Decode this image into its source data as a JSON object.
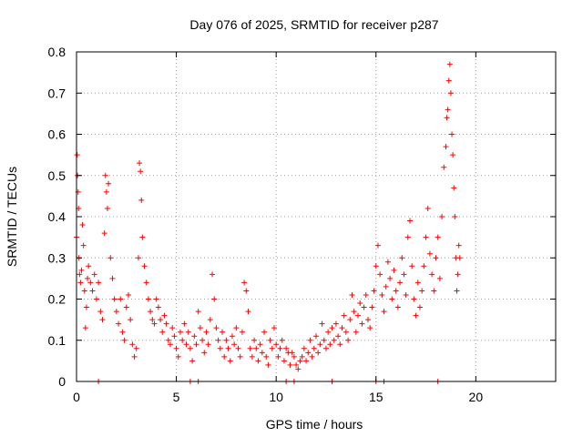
{
  "chart_data": {
    "type": "scatter",
    "title": "Day 076 of 2025, SRMTID for receiver p287",
    "xlabel": "GPS time / hours",
    "ylabel": "SRMTID / TECUs",
    "xlim": [
      0,
      24
    ],
    "ylim": [
      0,
      0.8
    ],
    "xticks": [
      0,
      5,
      10,
      15,
      20
    ],
    "xtick_labels": [
      "0",
      "5",
      "10",
      "15",
      "20"
    ],
    "yticks": [
      0,
      0.1,
      0.2,
      0.3,
      0.4,
      0.5,
      0.6,
      0.7,
      0.8
    ],
    "ytick_labels": [
      "0",
      "0.1",
      "0.2",
      "0.3",
      "0.4",
      "0.5",
      "0.6",
      "0.7",
      "0.8"
    ],
    "grid": true,
    "marker": "+",
    "color": "#ff0000",
    "series": [
      {
        "name": "SRMTID",
        "points": [
          [
            0.0,
            0.35
          ],
          [
            0.03,
            0.55
          ],
          [
            0.05,
            0.5
          ],
          [
            0.08,
            0.46
          ],
          [
            0.1,
            0.42
          ],
          [
            0.12,
            0.3
          ],
          [
            0.15,
            0.26
          ],
          [
            0.2,
            0.24
          ],
          [
            0.25,
            0.27
          ],
          [
            0.3,
            0.38
          ],
          [
            0.35,
            0.33
          ],
          [
            0.4,
            0.22
          ],
          [
            0.45,
            0.13
          ],
          [
            0.5,
            0.18
          ],
          [
            0.55,
            0.25
          ],
          [
            0.6,
            0.28
          ],
          [
            0.7,
            0.24
          ],
          [
            0.8,
            0.22
          ],
          [
            0.9,
            0.26
          ],
          [
            1.0,
            0.2
          ],
          [
            1.1,
            0.24
          ],
          [
            1.2,
            0.17
          ],
          [
            1.3,
            0.15
          ],
          [
            1.4,
            0.36
          ],
          [
            1.45,
            0.5
          ],
          [
            1.5,
            0.46
          ],
          [
            1.55,
            0.42
          ],
          [
            1.6,
            0.48
          ],
          [
            1.7,
            0.3
          ],
          [
            1.8,
            0.25
          ],
          [
            1.9,
            0.2
          ],
          [
            2.0,
            0.17
          ],
          [
            2.1,
            0.14
          ],
          [
            2.2,
            0.2
          ],
          [
            2.3,
            0.12
          ],
          [
            2.4,
            0.1
          ],
          [
            2.5,
            0.18
          ],
          [
            2.6,
            0.21
          ],
          [
            2.7,
            0.15
          ],
          [
            2.8,
            0.09
          ],
          [
            2.9,
            0.06
          ],
          [
            3.0,
            0.08
          ],
          [
            3.1,
            0.3
          ],
          [
            3.15,
            0.53
          ],
          [
            3.2,
            0.51
          ],
          [
            3.25,
            0.44
          ],
          [
            3.3,
            0.35
          ],
          [
            3.4,
            0.28
          ],
          [
            3.5,
            0.24
          ],
          [
            3.6,
            0.2
          ],
          [
            3.7,
            0.17
          ],
          [
            3.8,
            0.15
          ],
          [
            3.9,
            0.14
          ],
          [
            4.0,
            0.2
          ],
          [
            4.1,
            0.18
          ],
          [
            4.2,
            0.15
          ],
          [
            4.3,
            0.12
          ],
          [
            4.4,
            0.16
          ],
          [
            4.5,
            0.14
          ],
          [
            4.6,
            0.1
          ],
          [
            4.7,
            0.09
          ],
          [
            4.8,
            0.13
          ],
          [
            4.9,
            0.11
          ],
          [
            5.0,
            0.08
          ],
          [
            5.1,
            0.06
          ],
          [
            5.2,
            0.12
          ],
          [
            5.3,
            0.1
          ],
          [
            5.4,
            0.14
          ],
          [
            5.5,
            0.09
          ],
          [
            5.6,
            0.12
          ],
          [
            5.7,
            0.08
          ],
          [
            5.8,
            0.05
          ],
          [
            5.9,
            0.11
          ],
          [
            6.0,
            0.09
          ],
          [
            6.1,
            0.17
          ],
          [
            6.2,
            0.13
          ],
          [
            6.3,
            0.1
          ],
          [
            6.4,
            0.07
          ],
          [
            6.5,
            0.12
          ],
          [
            6.6,
            0.09
          ],
          [
            6.7,
            0.15
          ],
          [
            6.8,
            0.26
          ],
          [
            6.9,
            0.2
          ],
          [
            7.0,
            0.13
          ],
          [
            7.1,
            0.1
          ],
          [
            7.2,
            0.08
          ],
          [
            7.3,
            0.12
          ],
          [
            7.4,
            0.06
          ],
          [
            7.5,
            0.1
          ],
          [
            7.6,
            0.08
          ],
          [
            7.7,
            0.05
          ],
          [
            7.8,
            0.11
          ],
          [
            7.9,
            0.09
          ],
          [
            8.0,
            0.13
          ],
          [
            8.1,
            0.08
          ],
          [
            8.2,
            0.06
          ],
          [
            8.3,
            0.12
          ],
          [
            8.4,
            0.24
          ],
          [
            8.5,
            0.22
          ],
          [
            8.6,
            0.17
          ],
          [
            8.7,
            0.08
          ],
          [
            8.8,
            0.06
          ],
          [
            8.9,
            0.1
          ],
          [
            9.0,
            0.08
          ],
          [
            9.1,
            0.05
          ],
          [
            9.2,
            0.09
          ],
          [
            9.3,
            0.07
          ],
          [
            9.4,
            0.12
          ],
          [
            9.5,
            0.06
          ],
          [
            9.6,
            0.04
          ],
          [
            9.7,
            0.1
          ],
          [
            9.8,
            0.08
          ],
          [
            9.9,
            0.13
          ],
          [
            10.0,
            0.09
          ],
          [
            10.1,
            0.06
          ],
          [
            10.2,
            0.08
          ],
          [
            10.3,
            0.1
          ],
          [
            10.4,
            0.05
          ],
          [
            10.5,
            0.08
          ],
          [
            10.6,
            0.07
          ],
          [
            10.7,
            0.04
          ],
          [
            10.8,
            0.07
          ],
          [
            10.9,
            0.06
          ],
          [
            11.0,
            0.04
          ],
          [
            11.1,
            0.03
          ],
          [
            11.2,
            0.05
          ],
          [
            11.3,
            0.06
          ],
          [
            11.4,
            0.08
          ],
          [
            11.5,
            0.05
          ],
          [
            11.6,
            0.07
          ],
          [
            11.7,
            0.1
          ],
          [
            11.8,
            0.06
          ],
          [
            11.9,
            0.08
          ],
          [
            12.0,
            0.11
          ],
          [
            12.1,
            0.07
          ],
          [
            12.2,
            0.09
          ],
          [
            12.3,
            0.14
          ],
          [
            12.4,
            0.1
          ],
          [
            12.5,
            0.08
          ],
          [
            12.6,
            0.12
          ],
          [
            12.7,
            0.09
          ],
          [
            12.8,
            0.13
          ],
          [
            12.9,
            0.1
          ],
          [
            13.0,
            0.14
          ],
          [
            13.1,
            0.11
          ],
          [
            13.2,
            0.09
          ],
          [
            13.3,
            0.13
          ],
          [
            13.4,
            0.16
          ],
          [
            13.5,
            0.12
          ],
          [
            13.6,
            0.1
          ],
          [
            13.7,
            0.15
          ],
          [
            13.8,
            0.21
          ],
          [
            13.9,
            0.17
          ],
          [
            14.0,
            0.12
          ],
          [
            14.1,
            0.16
          ],
          [
            14.2,
            0.19
          ],
          [
            14.3,
            0.14
          ],
          [
            14.4,
            0.18
          ],
          [
            14.5,
            0.21
          ],
          [
            14.6,
            0.15
          ],
          [
            14.7,
            0.13
          ],
          [
            14.8,
            0.18
          ],
          [
            14.9,
            0.22
          ],
          [
            15.0,
            0.28
          ],
          [
            15.1,
            0.33
          ],
          [
            15.2,
            0.26
          ],
          [
            15.3,
            0.21
          ],
          [
            15.4,
            0.17
          ],
          [
            15.5,
            0.23
          ],
          [
            15.6,
            0.29
          ],
          [
            15.7,
            0.25
          ],
          [
            15.8,
            0.2
          ],
          [
            15.9,
            0.27
          ],
          [
            16.0,
            0.22
          ],
          [
            16.1,
            0.18
          ],
          [
            16.2,
            0.24
          ],
          [
            16.3,
            0.3
          ],
          [
            16.4,
            0.26
          ],
          [
            16.5,
            0.21
          ],
          [
            16.6,
            0.35
          ],
          [
            16.7,
            0.39
          ],
          [
            16.8,
            0.28
          ],
          [
            16.9,
            0.2
          ],
          [
            17.0,
            0.16
          ],
          [
            17.1,
            0.24
          ],
          [
            17.2,
            0.18
          ],
          [
            17.3,
            0.22
          ],
          [
            17.4,
            0.28
          ],
          [
            17.5,
            0.35
          ],
          [
            17.6,
            0.42
          ],
          [
            17.7,
            0.31
          ],
          [
            17.8,
            0.26
          ],
          [
            17.9,
            0.22
          ],
          [
            18.0,
            0.3
          ],
          [
            18.1,
            0.35
          ],
          [
            18.2,
            0.25
          ],
          [
            18.3,
            0.4
          ],
          [
            18.4,
            0.52
          ],
          [
            18.5,
            0.57
          ],
          [
            18.55,
            0.64
          ],
          [
            18.6,
            0.66
          ],
          [
            18.65,
            0.73
          ],
          [
            18.7,
            0.77
          ],
          [
            18.75,
            0.7
          ],
          [
            18.8,
            0.6
          ],
          [
            18.85,
            0.55
          ],
          [
            18.9,
            0.47
          ],
          [
            18.95,
            0.4
          ],
          [
            19.0,
            0.3
          ],
          [
            19.05,
            0.22
          ],
          [
            19.1,
            0.26
          ],
          [
            19.15,
            0.33
          ],
          [
            19.2,
            0.3
          ]
        ]
      }
    ],
    "baseline_markers_x": [
      1.1,
      5.7,
      6.1,
      10.5,
      10.9,
      12.8,
      15.0,
      15.4,
      18.1
    ]
  }
}
